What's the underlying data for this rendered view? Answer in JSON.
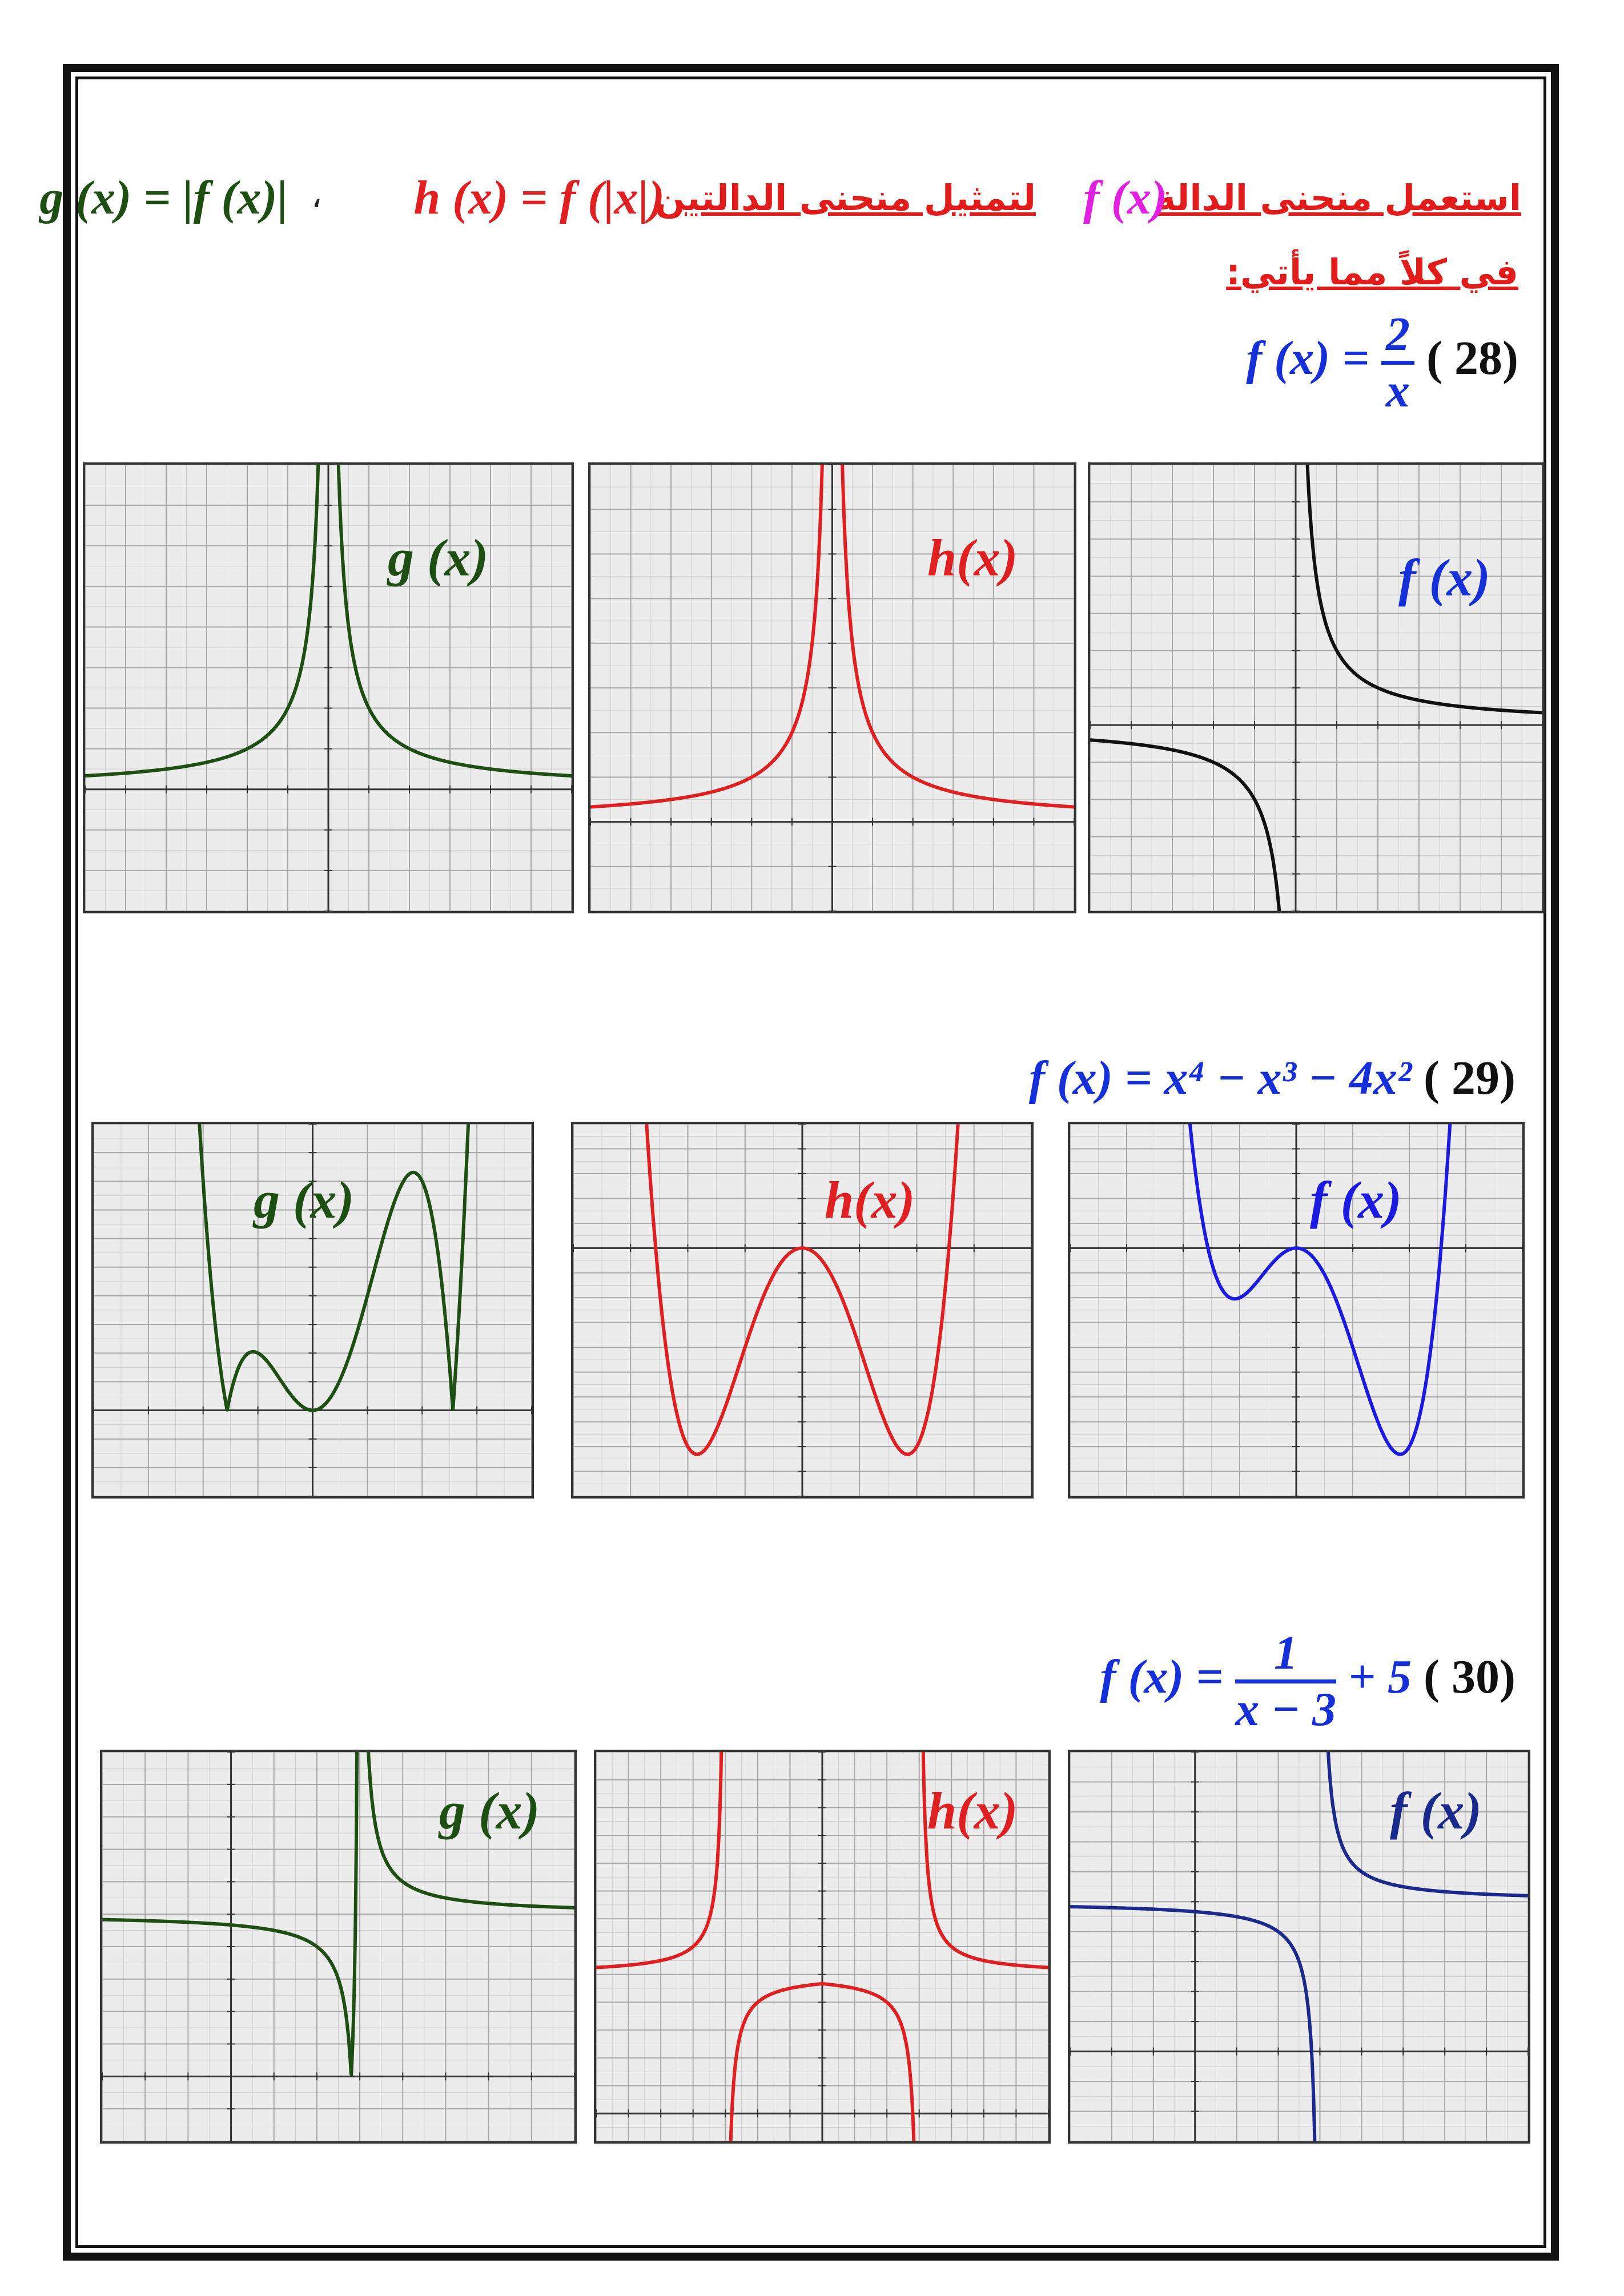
{
  "header": {
    "arabic_line1": "استعمل منحنى الدالة",
    "f_label": "f (x)",
    "arabic_line1b": "لتمثيل منحنى الدالتين",
    "h_def": "h (x) = f (|x|)",
    "comma": "،",
    "g_def": "g (x) = |f (x)|",
    "arabic_line2": "في كلاً مما يأتي:"
  },
  "problems": [
    {
      "number": "( 28)",
      "formula_prefix": "f (x) =",
      "frac_num": "2",
      "frac_den": "x",
      "formula_suffix": "",
      "labels": {
        "g": "g (x)",
        "h": "h(x)",
        "f": "f (x)"
      }
    },
    {
      "number": "( 29)",
      "formula_prefix": "f (x) = x⁴ − x³ − 4x²",
      "labels": {
        "g": "g (x)",
        "h": "h(x)",
        "f": "f (x)"
      }
    },
    {
      "number": "( 30)",
      "formula_prefix": "f (x) =",
      "frac_num": "1",
      "frac_den": "x − 3",
      "formula_suffix": "+ 5",
      "labels": {
        "g": "g (x)",
        "h": "h(x)",
        "f": "f (x)"
      }
    }
  ],
  "colors": {
    "g": "#1d4f13",
    "h": "#e02020",
    "f_black": "#111111",
    "f_blue": "#1a1ae0",
    "f_navy": "#1a2a8c",
    "f_magenta": "#e020e0",
    "title_blue": "#1530d8",
    "grid_bg": "#ececec"
  }
}
